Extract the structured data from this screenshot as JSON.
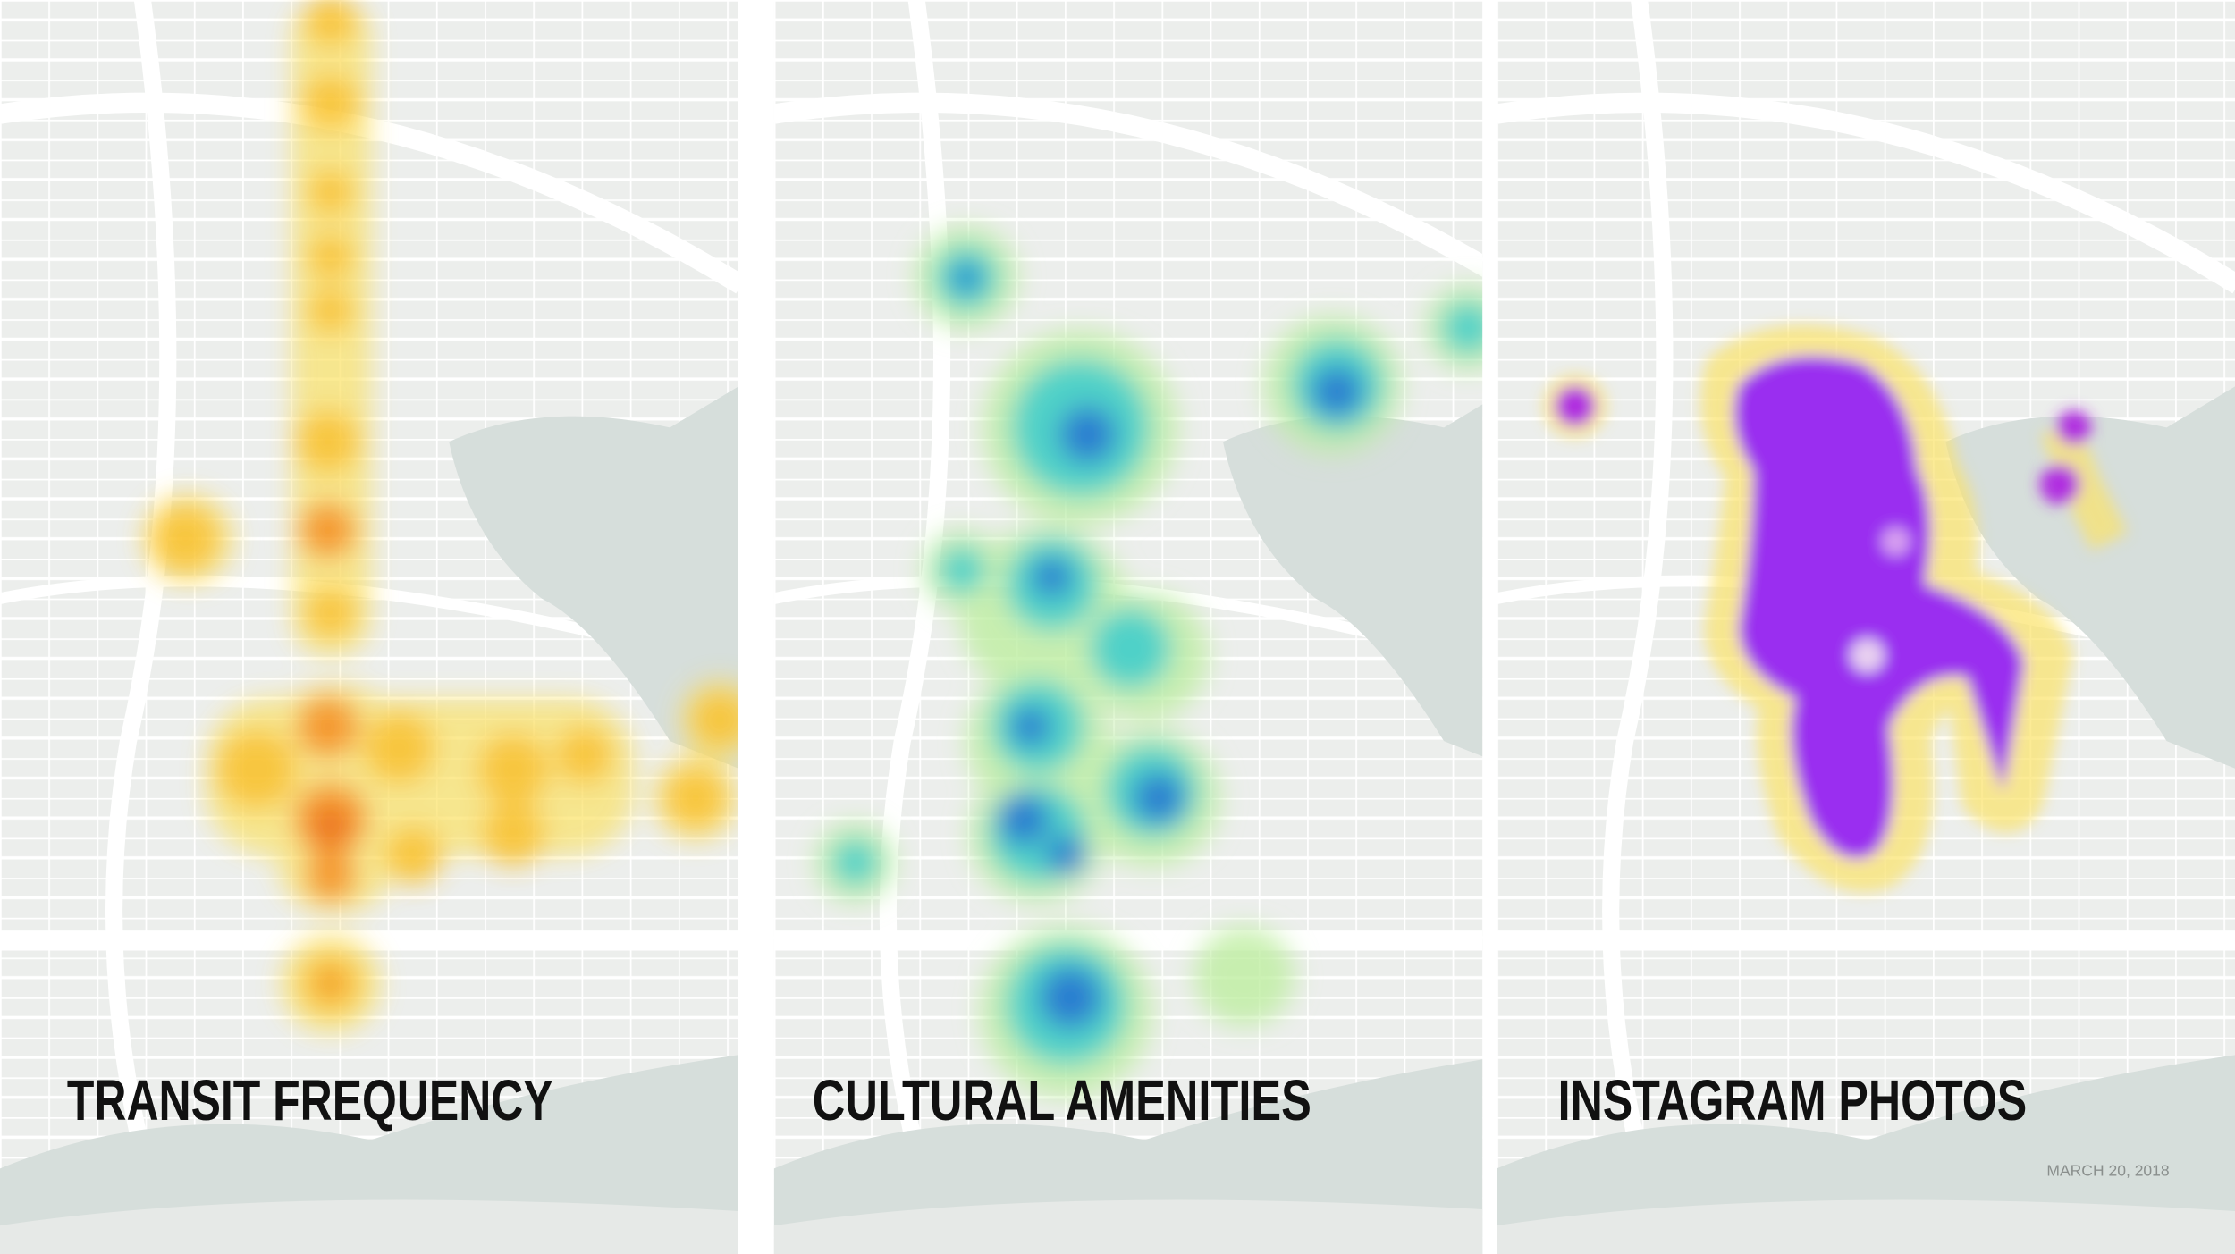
{
  "panels": [
    {
      "title": "TRANSIT FREQUENCY"
    },
    {
      "title": "CULTURAL AMENITIES"
    },
    {
      "title": "INSTAGRAM PHOTOS"
    }
  ],
  "date": "MARCH 20, 2018"
}
